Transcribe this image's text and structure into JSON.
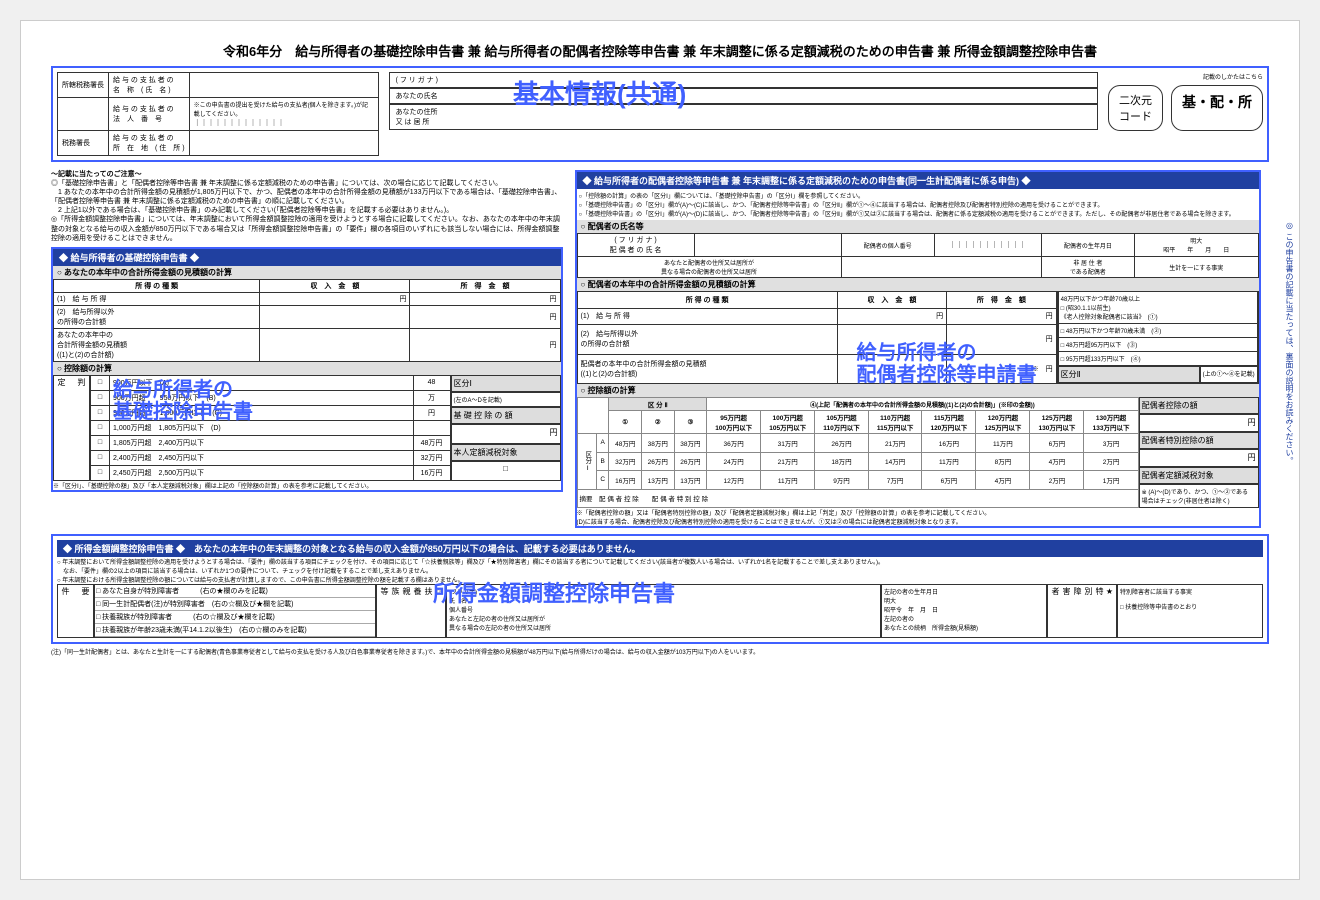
{
  "year_title": "令和6年分　給与所得者の基礎控除申告書 兼 給与所得者の配偶者控除等申告書 兼 年末調整に係る定額減税のための申告書 兼 所得金額調整控除申告書",
  "fill_note": "記載のしかたはこちら",
  "qr_label": "二次元\nコード",
  "tag_label": "基・配・所",
  "header": {
    "r1": "所轄税務署長",
    "r1b": "給 与 の 支 払 者 の\n名　称　( 氏　名 )",
    "r2": "給 与 の 支 払 者 の\n法　人　番　号",
    "r2note": "※この申告書の提出を受けた給与の支払者(個人を除きます。)が記載してください。",
    "r3": "税務署長",
    "r3b": "給 与 の 支 払 者 の\n所　在　地　( 住　所 )"
  },
  "furigana": {
    "r1": "( フ リ ガ ナ )",
    "r2": "あなたの氏名",
    "r3": "あなたの住所\n又 は 居 所"
  },
  "annotation_basic": "基本情報(共通)",
  "notes_header": "～記載に当たってのご注意～",
  "notes_body": "◎「基礎控除申告書」と「配偶者控除等申告書 兼 年末調整に係る定額減税のための申告書」については、次の場合に応じて記載してください。\n　1 あなたの本年中の合計所得金額の見積額が1,805万円以下で、かつ、配偶者の本年中の合計所得金額の見積額が133万円以下である場合は、「基礎控除申告書」、「配偶者控除等申告書 兼 年末調整に係る定額減税のための申告書」の順に記載してください。\n　2 上記1以外である場合は、「基礎控除申告書」のみ記載してください(「配偶者控除等申告書」を記載する必要はありません。)。\n◎「所得金額調整控除申告書」については、年末調整において所得金額調整控除の適用を受けようとする場合に記載してください。なお、あなたの本年中の年末調整の対象となる給与の収入金額が850万円以下である場合又は「所得金額調整控除申告書」の「要件」欄の各項目のいずれにも該当しない場合には、所得金額調整控除の適用を受けることはできません。",
  "left": {
    "section": "◆ 給与所得者の基礎控除申告書 ◆",
    "sub1": "○ あなたの本年中の合計所得金額の見積額の計算",
    "h1": "所 得 の 種 類",
    "h2": "収　入　金　額",
    "h3": "所　得　金　額",
    "row1": "(1)　給 与 所 得",
    "row2": "(2)　給与所得以外\nの所得の合計額",
    "row3": "あなたの本年中の\n合計所得金額の見積額\n((1)と(2)の合計額)",
    "sub2": "○ 控除額の計算",
    "kubun": "区分Ⅰ",
    "note_a": "(左のA～Dを記載)",
    "kiso_label": "基 礎 控 除 の 額",
    "teigaku_label": "本人定額減税対象",
    "brackets": [
      [
        "900万円以下　(A)",
        "48"
      ],
      [
        "900万円超　　950万円以下　(B)",
        "万"
      ],
      [
        "950万円超　　1,000万円以下　(C)",
        "円"
      ],
      [
        "1,000万円超　1,805万円以下　(D)",
        ""
      ],
      [
        "1,805万円超　2,400万円以下",
        "48万円"
      ],
      [
        "2,400万円超　2,450万円以下",
        "32万円"
      ],
      [
        "2,450万円超　2,500万円以下",
        "16万円"
      ]
    ],
    "footnote": "※「区分Ⅰ」、「基礎控除の額」及び「本人定額減税対象」欄は上記の「控除額の計算」の表を参考に記載してください。",
    "side_label": "判\n\n定",
    "genzei": "減\n税\n対\n象"
  },
  "right": {
    "section": "◆ 給与所得者の配偶者控除等申告書 兼 年末調整に係る定額減税のための申告書(同一生計配偶者に係る申告) ◆",
    "notes": "○「控除額の計算」の表の「区分Ⅰ」欄については、「基礎控除申告書」の「区分Ⅰ」欄を参照してください。\n○「基礎控除申告書」の「区分Ⅰ」欄が(A)～(C)に該当し、かつ、「配偶者控除等申告書」の「区分Ⅱ」欄が①～④に該当する場合は、配偶者控除及び配偶者特別控除の適用を受けることができます。\n○「基礎控除申告書」の「区分Ⅰ」欄が(A)～(D)に該当し、かつ、「配偶者控除等申告書」の「区分Ⅱ」欄が①又は②に該当する場合は、配偶者に係る定額減税の適用を受けることができます。ただし、その配偶者が非居住者である場合を除きます。",
    "sub0": "○ 配偶者の氏名等",
    "spouse_fields": {
      "furi": "( フ リ ガ ナ )",
      "name": "配 偶 者 の 氏 名",
      "bangou": "配偶者の個人番号",
      "birth": "配偶者の生年月日",
      "era": "明大\n昭平　　年　　月　　日",
      "addr": "あなたと配偶者の住所又は居所が\n異なる場合の配偶者の住所又は居所",
      "hikyo": "非 居 住 者\nである配偶者",
      "seikei": "生計を一にする事実"
    },
    "sub1": "○ 配偶者の本年中の合計所得金額の見積額の計算",
    "row3": "配偶者の本年中の合計所得金額の見積額\n((1)と(2)の合計額)",
    "kubun2": "区分Ⅱ",
    "judge_rows": [
      "48万円以下かつ年齢70歳以上\n□ (昭30.1.1以前生)\n《老人控除対象配偶者に該当》　(①)",
      "□ 48万円以下かつ年齢70歳未満　(②)",
      "□ 48万円超95万円以下　(③)",
      "□ 95万円超133万円以下　(④)"
    ],
    "judge_note": "(上の①～④を記載)",
    "sub2": "○ 控除額の計算",
    "matrix_header": "④(上記「配偶者の本年中の合計所得金額の見積額((1)と(2)の合計額)」(※印の金額))",
    "matrix_cols": [
      "95万円超\n100万円以下",
      "100万円超\n105万円以下",
      "105万円超\n110万円以下",
      "110万円超\n115万円以下",
      "115万円超\n120万円以下",
      "120万円超\n125万円以下",
      "125万円超\n130万円以下",
      "130万円超\n133万円以下"
    ],
    "matrix_rows": [
      [
        "A",
        "48万円",
        "38万円",
        "38万円",
        "36万円",
        "31万円",
        "26万円",
        "21万円",
        "16万円",
        "11万円",
        "6万円",
        "3万円"
      ],
      [
        "B",
        "32万円",
        "26万円",
        "26万円",
        "24万円",
        "21万円",
        "18万円",
        "14万円",
        "11万円",
        "8万円",
        "4万円",
        "2万円"
      ],
      [
        "C",
        "16万円",
        "13万円",
        "13万円",
        "12万円",
        "11万円",
        "9万円",
        "7万円",
        "6万円",
        "4万円",
        "2万円",
        "1万円"
      ]
    ],
    "tekiyo": "摘要　配 偶 者 控 除　　配 偶 者 特 別 控 除",
    "result1": "配偶者控除の額",
    "result2": "配偶者特別控除の額",
    "result3": "配偶者定額減税対象",
    "footnote": "※「配偶者控除の額」又は「配偶者特別控除の額」及び「配偶者定額減税対象」欄は上記「判定」及び「控除額の計算」の表を参考に記載してください。\n(D)に該当する場合、配偶者控除及び配偶者特別控除の適用を受けることはできませんが、①又は②の場合には配偶者定額減税対象となります。",
    "footnote2": "※ (A)～(D)であり、かつ、①〜②である\n場合はチェック(非居住者は除く)",
    "side_judge": "配偶者控除\n定額減税対象"
  },
  "bottom": {
    "section": "◆ 所得金額調整控除申告書 ◆　あなたの本年中の年末調整の対象となる給与の収入金額が850万円以下の場合は、記載する必要はありません。",
    "notes": "○ 年末調整において所得金額調整控除の適用を受けようとする場合は、「要件」欄の該当する項目にチェックを付け、その項目に応じて「☆扶養親族等」欄及び「★特別障害者」欄にその該当する者について記載してください(該当者が複数人いる場合は、いずれか1名を記載することで差し支えありません。)。\n　なお、「要件」欄の2以上の項目に該当する場合は、いずれか1つの要件について、チェックを付け記載をすることで差し支えありません。\n○ 年末調整における所得金額調整控除の額については給与の支払者が計算しますので、この申告書に所得金額調整控除の額を記載する欄はありません。",
    "req_label": "要\n\n件",
    "reqs": [
      "□ あなた自身が特別障害者　　　(右の★欄のみを記載)",
      "□ 同一生計配偶者(注)が特別障害者　(右の☆欄及び★欄を記載)",
      "□ 扶養親族が特別障害者　　　(右の☆欄及び★欄を記載)",
      "□ 扶養親族が年齢23歳未満(平14.1.2以後生)　(右の☆欄のみを記載)"
    ],
    "dep_label": "☆\n扶\n養\n親\n族\n等",
    "dep_fields": "(フリガナ)\n氏　名\n個人番号\nあなたと左記の者の住所又は居所が\n異なる場合の左記の者の住所又は居所",
    "dep_right": "左記の者の生年月日\n明大\n昭平令　年　月　日\n左記の者の\nあなたとの続柄　所得金額(見積額)",
    "star_label": "★\n特\n別\n障\n害\n者",
    "star_content": "特別障害者に該当する事実\n\n□ 扶養控除等申告書のとおり",
    "footnote": "(注)「同一生計配偶者」とは、あなたと生計を一にする配偶者(青色事業専従者として給与の支払を受ける人及び白色事業専従者を除きます。)で、本年中の合計所得金額の見積額が48万円以下(給与所得だけの場合は、給与の収入金額が103万円以下)の人をいいます。"
  },
  "side_note": "◎ この申告書の記載に当たっては、裏面の説明をお読みください。",
  "overlays": {
    "kiso": "給与所得者の\n基礎控除申告書",
    "haigusha": "給与所得者の\n配偶者控除等申請書",
    "shotoku": "所得金額調整控除申告書"
  }
}
